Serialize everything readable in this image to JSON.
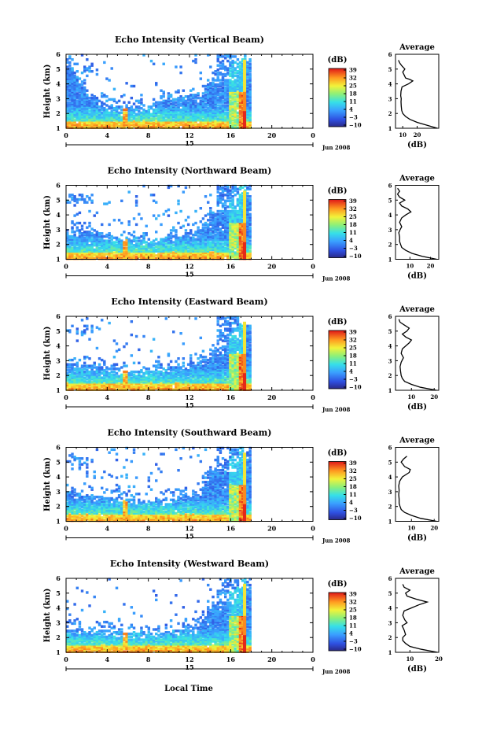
{
  "figure": {
    "x_axis_label": "Local Time",
    "date_label": "Jun 2008",
    "day_label": "15"
  },
  "chart_data": [
    {
      "type": "heatmap",
      "panel": "vertical",
      "title": "Echo Intensity (Vertical Beam)",
      "ylabel": "Height (km)",
      "xlim": [
        0,
        24
      ],
      "ylim": [
        1,
        6
      ],
      "x_ticks": [
        "0",
        "4",
        "8",
        "12",
        "16",
        "20",
        "0"
      ],
      "y_ticks": [
        "1",
        "2",
        "3",
        "4",
        "5",
        "6"
      ],
      "colorbar": {
        "unit": "(dB)",
        "ticks": [
          "39",
          "32",
          "25",
          "18",
          "11",
          "4",
          "−3",
          "−10"
        ],
        "range": [
          -10,
          39
        ]
      },
      "upper_limit_km": [
        5.5,
        4.6,
        3.6,
        3.0,
        2.5,
        2.5,
        2.4,
        2.4,
        2.4,
        2.8,
        3.0,
        3.0,
        3.3,
        3.2,
        4.4,
        4.4,
        5.4,
        5.7,
        5.7
      ],
      "bright_band_km": 1.3,
      "average_profile": {
        "title": "Average",
        "xlabel": "(dB)",
        "x_ticks": [
          "10",
          "20"
        ],
        "xlim": [
          5,
          35
        ],
        "ylim": [
          1,
          6
        ],
        "height": [
          1.0,
          1.2,
          1.4,
          1.6,
          1.8,
          2.0,
          2.2,
          2.5,
          2.8,
          3.0,
          3.2,
          3.5,
          3.8,
          4.0,
          4.2,
          4.3,
          4.4,
          4.6,
          4.8,
          5.0,
          5.2,
          5.4,
          5.6
        ],
        "intensity": [
          34,
          27,
          20,
          15,
          12,
          10,
          9.3,
          9,
          8.8,
          9,
          8.6,
          8.8,
          9.5,
          14,
          17,
          15,
          12,
          11,
          10,
          11.5,
          9.5,
          8,
          7
        ]
      }
    },
    {
      "type": "heatmap",
      "panel": "northward",
      "title": "Echo Intensity (Northward Beam)",
      "ylabel": "Height (km)",
      "xlim": [
        0,
        24
      ],
      "ylim": [
        1,
        6
      ],
      "x_ticks": [
        "0",
        "4",
        "8",
        "12",
        "16",
        "20",
        "0"
      ],
      "y_ticks": [
        "1",
        "2",
        "3",
        "4",
        "5",
        "6"
      ],
      "colorbar": {
        "unit": "(dB)",
        "ticks": [
          "39",
          "32",
          "25",
          "18",
          "11",
          "4",
          "−3",
          "−10"
        ],
        "range": [
          -10,
          39
        ]
      },
      "upper_limit_km": [
        3.0,
        3.0,
        2.9,
        2.8,
        2.7,
        2.4,
        2.4,
        2.3,
        2.2,
        2.4,
        2.6,
        2.6,
        2.8,
        3.0,
        4.2,
        4.3,
        5.2,
        5.5,
        5.5
      ],
      "bright_band_km": 1.3,
      "average_profile": {
        "title": "Average",
        "xlabel": "(dB)",
        "x_ticks": [
          "10",
          "20"
        ],
        "xlim": [
          3,
          24
        ],
        "ylim": [
          1,
          6
        ],
        "height": [
          1.0,
          1.2,
          1.4,
          1.6,
          1.8,
          2.0,
          2.2,
          2.5,
          2.8,
          3.0,
          3.2,
          3.5,
          3.8,
          4.0,
          4.2,
          4.4,
          4.6,
          4.8,
          5.0,
          5.2,
          5.4,
          5.6,
          5.8
        ],
        "intensity": [
          23,
          16,
          11,
          8,
          6,
          5.5,
          5,
          5,
          4.6,
          5.2,
          6,
          5,
          6,
          8,
          10.5,
          9,
          6,
          5,
          7.5,
          5,
          4,
          5,
          4
        ]
      }
    },
    {
      "type": "heatmap",
      "panel": "eastward",
      "title": "Echo Intensity (Eastward Beam)",
      "ylabel": "Height (km)",
      "xlim": [
        0,
        24
      ],
      "ylim": [
        1,
        6
      ],
      "x_ticks": [
        "0",
        "4",
        "8",
        "12",
        "16",
        "20",
        "0"
      ],
      "y_ticks": [
        "1",
        "2",
        "3",
        "4",
        "5",
        "6"
      ],
      "colorbar": {
        "unit": "(dB)",
        "ticks": [
          "39",
          "32",
          "25",
          "18",
          "11",
          "4",
          "−3",
          "−10"
        ],
        "range": [
          -10,
          39
        ]
      },
      "upper_limit_km": [
        2.8,
        2.8,
        2.7,
        2.6,
        2.5,
        2.4,
        2.3,
        2.3,
        2.3,
        2.4,
        2.6,
        2.6,
        2.9,
        3.0,
        3.5,
        3.6,
        5.0,
        5.5,
        5.5
      ],
      "bright_band_km": 1.3,
      "average_profile": {
        "title": "Average",
        "xlabel": "(dB)",
        "x_ticks": [
          "10",
          "20"
        ],
        "xlim": [
          3,
          22
        ],
        "ylim": [
          1,
          6
        ],
        "height": [
          1.0,
          1.2,
          1.4,
          1.6,
          1.8,
          2.0,
          2.3,
          2.6,
          2.9,
          3.2,
          3.5,
          3.8,
          4.0,
          4.2,
          4.4,
          4.6,
          4.8,
          5.0,
          5.2,
          5.4,
          5.6,
          5.8
        ],
        "intensity": [
          21,
          14,
          10,
          7,
          6,
          5.5,
          5.2,
          5,
          5.5,
          6.5,
          5.5,
          6,
          7.5,
          9,
          10,
          7.5,
          6,
          8,
          9,
          7,
          5,
          4.5
        ]
      }
    },
    {
      "type": "heatmap",
      "panel": "southward",
      "title": "Echo Intensity (Southward Beam)",
      "ylabel": "Height (km)",
      "xlim": [
        0,
        24
      ],
      "ylim": [
        1,
        6
      ],
      "x_ticks": [
        "0",
        "4",
        "8",
        "12",
        "16",
        "20",
        "0"
      ],
      "y_ticks": [
        "1",
        "2",
        "3",
        "4",
        "5",
        "6"
      ],
      "colorbar": {
        "unit": "(dB)",
        "ticks": [
          "39",
          "32",
          "25",
          "18",
          "11",
          "4",
          "−3",
          "−10"
        ],
        "range": [
          -10,
          39
        ]
      },
      "upper_limit_km": [
        3.0,
        2.9,
        2.8,
        2.7,
        2.6,
        2.6,
        2.5,
        2.4,
        2.3,
        2.4,
        2.6,
        2.7,
        2.8,
        3.0,
        4.6,
        4.6,
        5.4,
        5.6,
        5.6
      ],
      "bright_band_km": 1.3,
      "average_profile": {
        "title": "Average",
        "xlabel": "(dB)",
        "x_ticks": [
          "10",
          "20"
        ],
        "xlim": [
          3,
          22
        ],
        "ylim": [
          1,
          6
        ],
        "height": [
          1.0,
          1.2,
          1.4,
          1.6,
          1.8,
          2.0,
          2.2,
          2.5,
          2.8,
          3.1,
          3.4,
          3.7,
          4.0,
          4.3,
          4.5,
          4.7,
          5.0,
          5.2,
          5.4
        ],
        "intensity": [
          21,
          14,
          10,
          7,
          5.5,
          5,
          4.6,
          4.6,
          4.4,
          4.6,
          4.4,
          4.8,
          6,
          9,
          9.5,
          7,
          5.5,
          6.5,
          8
        ]
      }
    },
    {
      "type": "heatmap",
      "panel": "westward",
      "title": "Echo Intensity (Westward Beam)",
      "ylabel": "Height (km)",
      "xlim": [
        0,
        24
      ],
      "ylim": [
        1,
        6
      ],
      "x_ticks": [
        "0",
        "4",
        "8",
        "12",
        "16",
        "20",
        "0"
      ],
      "y_ticks": [
        "1",
        "2",
        "3",
        "4",
        "5",
        "6"
      ],
      "colorbar": {
        "unit": "(dB)",
        "ticks": [
          "39",
          "32",
          "25",
          "18",
          "11",
          "4",
          "−3",
          "−10"
        ],
        "range": [
          -10,
          39
        ]
      },
      "upper_limit_km": [
        2.6,
        2.6,
        2.5,
        2.5,
        2.5,
        2.4,
        2.3,
        2.3,
        2.2,
        2.3,
        2.4,
        2.5,
        2.6,
        2.8,
        4.2,
        4.4,
        5.2,
        5.6,
        5.6
      ],
      "bright_band_km": 1.3,
      "average_profile": {
        "title": "Average",
        "xlabel": "(dB)",
        "x_ticks": [
          "10",
          "20"
        ],
        "xlim": [
          5,
          20
        ],
        "ylim": [
          1,
          6
        ],
        "height": [
          1.0,
          1.2,
          1.4,
          1.6,
          1.8,
          2.0,
          2.2,
          2.5,
          2.8,
          3.0,
          3.2,
          3.5,
          3.8,
          4.0,
          4.2,
          4.4,
          4.6,
          4.8,
          5.0,
          5.2,
          5.4,
          5.6
        ],
        "intensity": [
          19.5,
          14,
          10,
          8.5,
          7.5,
          7.5,
          8.5,
          8,
          7.3,
          9,
          8.2,
          7.5,
          8,
          10.5,
          13,
          16,
          12,
          9,
          8.5,
          10,
          8,
          7.5
        ]
      }
    }
  ]
}
